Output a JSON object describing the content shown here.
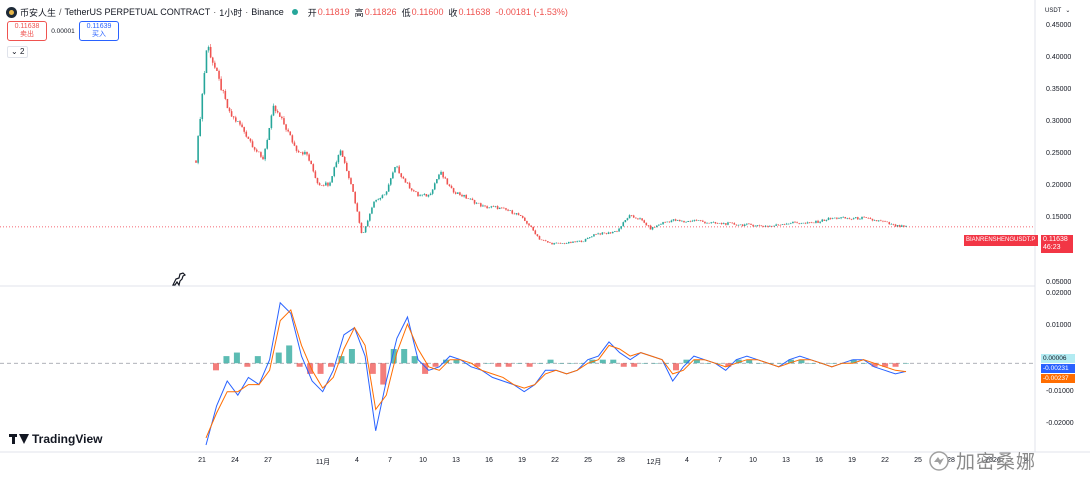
{
  "header": {
    "symbol_name": "币安人生",
    "contract": "TetherUS PERPETUAL CONTRACT",
    "interval": "1小时",
    "exchange": "Binance",
    "ohlc": {
      "open_label": "开",
      "open": "0.11819",
      "high_label": "高",
      "high": "0.11826",
      "low_label": "低",
      "low": "0.11600",
      "close_label": "收",
      "close": "0.11638",
      "change": "-0.00181 (-1.53%)"
    }
  },
  "trade": {
    "sell_price": "0.11638",
    "sell_label": "卖出",
    "spread": "0.00001",
    "buy_price": "0.11639",
    "buy_label": "买入"
  },
  "indicator_toggle": "2",
  "currency": "USDT",
  "price_axis": {
    "ticks": [
      "0.45000",
      "0.40000",
      "0.35000",
      "0.30000",
      "0.25000",
      "0.20000",
      "0.15000",
      "0.05000"
    ]
  },
  "osc_axis": {
    "ticks": [
      "0.02000",
      "0.01000",
      "-0.01000",
      "-0.02000"
    ]
  },
  "time_axis": {
    "labels": [
      "21",
      "24",
      "27",
      "11月",
      "4",
      "7",
      "10",
      "13",
      "16",
      "19",
      "22",
      "25",
      "28",
      "12月",
      "4",
      "7",
      "10",
      "13",
      "16",
      "19",
      "22",
      "25",
      "28",
      "2026",
      "4"
    ]
  },
  "price_tag": {
    "symbol": "BIANRENSHENGUSDT.P",
    "price": "0.11638",
    "countdown": "46:23"
  },
  "oscillator_tags": {
    "histogram": "0.00006",
    "macd": "-0.00231",
    "signal": "-0.00237"
  },
  "branding": {
    "logo_text": "TradingView"
  },
  "watermark": {
    "text": "加密桑娜"
  },
  "colors": {
    "up": "#26a69a",
    "down": "#ef5350",
    "macd": "#2962ff",
    "signal": "#ff6d00",
    "tag": "#f23645"
  },
  "chart_data": [
    {
      "type": "candlestick",
      "title": "币安人生 / TetherUS PERPETUAL CONTRACT · 1小时 · Binance",
      "interval": "1小时",
      "ylim": [
        0.0,
        0.47
      ],
      "y_scale": "linear",
      "grid": false,
      "close_path": [
        {
          "label": "21",
          "close": 0.23
        },
        {
          "label": "21",
          "close": 0.43
        },
        {
          "label": "22",
          "close": 0.37
        },
        {
          "label": "23",
          "close": 0.31
        },
        {
          "label": "24",
          "close": 0.29
        },
        {
          "label": "25",
          "close": 0.26
        },
        {
          "label": "26",
          "close": 0.23
        },
        {
          "label": "27",
          "close": 0.32
        },
        {
          "label": "28",
          "close": 0.29
        },
        {
          "label": "29",
          "close": 0.25
        },
        {
          "label": "30",
          "close": 0.24
        },
        {
          "label": "31",
          "close": 0.19
        },
        {
          "label": "11月",
          "close": 0.19
        },
        {
          "label": "2",
          "close": 0.25
        },
        {
          "label": "3",
          "close": 0.19
        },
        {
          "label": "4",
          "close": 0.1
        },
        {
          "label": "4",
          "close": 0.16
        },
        {
          "label": "5",
          "close": 0.17
        },
        {
          "label": "6",
          "close": 0.22
        },
        {
          "label": "7",
          "close": 0.19
        },
        {
          "label": "8",
          "close": 0.17
        },
        {
          "label": "9",
          "close": 0.17
        },
        {
          "label": "10",
          "close": 0.21
        },
        {
          "label": "11",
          "close": 0.18
        },
        {
          "label": "12",
          "close": 0.17
        },
        {
          "label": "13",
          "close": 0.16
        },
        {
          "label": "14",
          "close": 0.15
        },
        {
          "label": "16",
          "close": 0.15
        },
        {
          "label": "18",
          "close": 0.145
        },
        {
          "label": "19",
          "close": 0.138
        },
        {
          "label": "20",
          "close": 0.12
        },
        {
          "label": "21",
          "close": 0.095
        },
        {
          "label": "22",
          "close": 0.088
        },
        {
          "label": "23",
          "close": 0.088
        },
        {
          "label": "24",
          "close": 0.09
        },
        {
          "label": "25",
          "close": 0.093
        },
        {
          "label": "26",
          "close": 0.105
        },
        {
          "label": "27",
          "close": 0.105
        },
        {
          "label": "28",
          "close": 0.11
        },
        {
          "label": "29",
          "close": 0.135
        },
        {
          "label": "30",
          "close": 0.13
        },
        {
          "label": "12月",
          "close": 0.113
        },
        {
          "label": "2",
          "close": 0.123
        },
        {
          "label": "3",
          "close": 0.128
        },
        {
          "label": "4",
          "close": 0.125
        },
        {
          "label": "5",
          "close": 0.128
        },
        {
          "label": "6",
          "close": 0.124
        },
        {
          "label": "7",
          "close": 0.122
        },
        {
          "label": "8",
          "close": 0.122
        },
        {
          "label": "9",
          "close": 0.12
        },
        {
          "label": "10",
          "close": 0.12
        },
        {
          "label": "11",
          "close": 0.118
        },
        {
          "label": "12",
          "close": 0.118
        },
        {
          "label": "13",
          "close": 0.122
        },
        {
          "label": "14",
          "close": 0.124
        },
        {
          "label": "15",
          "close": 0.122
        },
        {
          "label": "16",
          "close": 0.125
        },
        {
          "label": "17",
          "close": 0.13
        },
        {
          "label": "18",
          "close": 0.132
        },
        {
          "label": "19",
          "close": 0.13
        },
        {
          "label": "20",
          "close": 0.132
        },
        {
          "label": "21",
          "close": 0.128
        },
        {
          "label": "22",
          "close": 0.125
        },
        {
          "label": "23",
          "close": 0.118
        },
        {
          "label": "23",
          "close": 0.11638
        }
      ],
      "last": {
        "open": 0.11819,
        "high": 0.11826,
        "low": 0.116,
        "close": 0.11638
      }
    },
    {
      "type": "line",
      "ylim": [
        -0.023,
        0.022
      ],
      "grid": false,
      "series": [
        {
          "values": [
            -0.023,
            -0.012,
            -0.005,
            -0.009,
            -0.004,
            -0.006,
            0.001,
            0.017,
            0.014,
            0.002,
            -0.005,
            -0.008,
            -0.002,
            0.008,
            0.01,
            0.002,
            -0.019,
            -0.005,
            0.007,
            0.013,
            0.001,
            -0.002,
            -0.001,
            0.002,
            0.001,
            -0.001,
            -0.002,
            -0.004,
            -0.005,
            -0.006,
            -0.008,
            -0.006,
            -0.002,
            -0.002,
            -0.003,
            -0.002,
            0.001,
            0.002,
            0.006,
            0.003,
            0.001,
            0.003,
            0.002,
            0.001,
            -0.005,
            -0.001,
            0.002,
            0.001,
            0.0,
            -0.002,
            0.001,
            0.002,
            0.001,
            0.0,
            -0.001,
            0.001,
            0.002,
            0.001,
            0.0,
            -0.001,
            0.0,
            0.001,
            0.001,
            -0.001,
            -0.002,
            -0.003,
            -0.00231
          ]
        },
        {
          "values": [
            -0.021,
            -0.014,
            -0.008,
            -0.008,
            -0.006,
            -0.006,
            -0.002,
            0.012,
            0.015,
            0.005,
            -0.002,
            -0.007,
            -0.004,
            0.004,
            0.01,
            0.005,
            -0.013,
            -0.009,
            0.003,
            0.011,
            0.004,
            -0.001,
            -0.002,
            0.001,
            0.001,
            0.0,
            -0.002,
            -0.003,
            -0.004,
            -0.006,
            -0.007,
            -0.006,
            -0.003,
            -0.002,
            -0.003,
            -0.002,
            0.0,
            0.001,
            0.005,
            0.004,
            0.002,
            0.003,
            0.002,
            0.001,
            -0.003,
            -0.002,
            0.001,
            0.001,
            0.0,
            -0.001,
            0.0,
            0.001,
            0.001,
            0.0,
            -0.001,
            0.0,
            0.001,
            0.001,
            0.0,
            -0.001,
            0.0,
            0.0,
            0.001,
            0.0,
            -0.001,
            -0.002,
            -0.00237
          ]
        },
        {
          "type": "histogram",
          "values": [
            -0.002,
            0.002,
            0.003,
            -0.001,
            0.002,
            0.0,
            0.003,
            0.005,
            -0.001,
            -0.003,
            -0.003,
            -0.001,
            0.002,
            0.004,
            0.0,
            -0.003,
            -0.006,
            0.004,
            0.004,
            0.002,
            -0.003,
            -0.001,
            0.001,
            0.001,
            0.0,
            -0.001,
            0.0,
            -0.001,
            -0.001,
            0.0,
            -0.001,
            0.0,
            0.001,
            0.0,
            0.0,
            0.0,
            0.001,
            0.001,
            0.001,
            -0.001,
            -0.001,
            0.0,
            0.0,
            0.0,
            -0.002,
            0.001,
            0.001,
            0.0,
            0.0,
            -0.001,
            0.001,
            0.001,
            0.0,
            0.0,
            0.0,
            0.001,
            0.001,
            0.0,
            0.0,
            0.0,
            0.0,
            0.001,
            0.0,
            -0.001,
            -0.001,
            -0.001,
            6e-05
          ]
        }
      ]
    }
  ]
}
